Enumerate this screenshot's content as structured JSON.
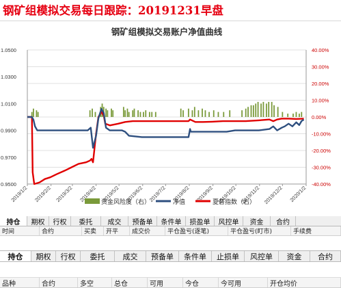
{
  "headline": "钢矿组模拟交易每日跟踪：20191231早盘",
  "chart_data": {
    "type": "bar+line",
    "title": "钢矿组模拟交易账户净值曲线",
    "left_ticks": [
      "1.0500",
      "1.0300",
      "1.0100",
      "0.9900",
      "0.9700",
      "0.9500"
    ],
    "left_ylim": [
      0.95,
      1.05
    ],
    "right_ticks": [
      "40.00%",
      "30.00%",
      "20.00%",
      "10.00%",
      "0.00%",
      "-10.00%",
      "-20.00%",
      "-30.00%",
      "-40.00%"
    ],
    "right_ylim": [
      -40,
      40
    ],
    "x_ticks": [
      "2019/1/2",
      "2019/2/2",
      "2019/3/2",
      "2019/4/2",
      "2019/5/2",
      "2019/6/2",
      "2019/7/2",
      "2019/8/2",
      "2019/9/2",
      "2019/10/2",
      "2019/11/2",
      "2019/12/2",
      "2020/1/2"
    ],
    "x_range": [
      "2019/1/2",
      "2020/1/2"
    ],
    "grid": true,
    "legend_position": "bottom",
    "series": [
      {
        "name": "资金风险度（右）",
        "kind": "bar",
        "axis": "right",
        "color": "#7a9a3a",
        "points": [
          [
            "2019/1/8",
            3
          ],
          [
            "2019/1/10",
            5
          ],
          [
            "2019/1/14",
            4
          ],
          [
            "2019/1/16",
            3
          ],
          [
            "2019/3/25",
            4
          ],
          [
            "2019/3/28",
            5
          ],
          [
            "2019/4/1",
            3
          ],
          [
            "2019/4/8",
            6
          ],
          [
            "2019/4/10",
            8
          ],
          [
            "2019/4/12",
            6
          ],
          [
            "2019/4/15",
            5
          ],
          [
            "2019/4/17",
            4
          ],
          [
            "2019/4/22",
            5
          ],
          [
            "2019/4/24",
            4
          ],
          [
            "2019/5/8",
            6
          ],
          [
            "2019/5/10",
            4
          ],
          [
            "2019/5/13",
            5
          ],
          [
            "2019/5/15",
            3
          ],
          [
            "2019/5/20",
            4
          ],
          [
            "2019/5/22",
            5
          ],
          [
            "2019/5/27",
            4
          ],
          [
            "2019/5/30",
            3
          ],
          [
            "2019/6/3",
            3
          ],
          [
            "2019/6/6",
            4
          ],
          [
            "2019/6/11",
            3
          ],
          [
            "2019/6/14",
            3
          ],
          [
            "2019/6/19",
            3
          ],
          [
            "2019/7/22",
            5
          ],
          [
            "2019/7/25",
            4
          ],
          [
            "2019/8/1",
            5
          ],
          [
            "2019/8/6",
            4
          ],
          [
            "2019/8/9",
            6
          ],
          [
            "2019/8/14",
            4
          ],
          [
            "2019/8/19",
            5
          ],
          [
            "2019/8/23",
            4
          ],
          [
            "2019/8/28",
            3
          ],
          [
            "2019/9/3",
            4
          ],
          [
            "2019/9/9",
            3
          ],
          [
            "2019/9/16",
            3
          ],
          [
            "2019/9/24",
            4
          ],
          [
            "2019/10/10",
            4
          ],
          [
            "2019/10/15",
            5
          ],
          [
            "2019/10/18",
            6
          ],
          [
            "2019/10/22",
            7
          ],
          [
            "2019/10/25",
            7
          ],
          [
            "2019/10/28",
            8
          ],
          [
            "2019/10/31",
            9
          ],
          [
            "2019/11/4",
            8
          ],
          [
            "2019/11/7",
            9
          ],
          [
            "2019/11/11",
            8
          ],
          [
            "2019/11/14",
            9
          ],
          [
            "2019/11/18",
            9
          ],
          [
            "2019/11/21",
            7
          ],
          [
            "2019/11/26",
            6
          ],
          [
            "2019/12/2",
            3
          ],
          [
            "2019/12/9",
            2
          ],
          [
            "2019/12/16",
            2
          ],
          [
            "2019/12/20",
            3
          ],
          [
            "2019/12/24",
            2
          ],
          [
            "2019/12/27",
            3
          ]
        ]
      },
      {
        "name": "净值",
        "kind": "line",
        "axis": "left",
        "color": "#2e4f7f",
        "points": [
          [
            "2019/1/2",
            1.0
          ],
          [
            "2019/1/8",
            1.0
          ],
          [
            "2019/1/10",
            0.998
          ],
          [
            "2019/1/12",
            0.993
          ],
          [
            "2019/1/15",
            0.99
          ],
          [
            "2019/1/20",
            0.99
          ],
          [
            "2019/2/1",
            0.99
          ],
          [
            "2019/2/15",
            0.99
          ],
          [
            "2019/3/1",
            0.99
          ],
          [
            "2019/3/15",
            0.99
          ],
          [
            "2019/3/22",
            0.99
          ],
          [
            "2019/3/26",
            0.992
          ],
          [
            "2019/3/28",
            0.982
          ],
          [
            "2019/3/29",
            0.977
          ],
          [
            "2019/4/2",
            0.986
          ],
          [
            "2019/4/5",
            0.999
          ],
          [
            "2019/4/9",
            1.006
          ],
          [
            "2019/4/12",
            1.003
          ],
          [
            "2019/4/15",
            0.992
          ],
          [
            "2019/4/20",
            0.99
          ],
          [
            "2019/5/1",
            0.99
          ],
          [
            "2019/5/6",
            0.99
          ],
          [
            "2019/5/10",
            0.989
          ],
          [
            "2019/5/15",
            0.986
          ],
          [
            "2019/6/1",
            0.985
          ],
          [
            "2019/6/15",
            0.985
          ],
          [
            "2019/7/1",
            0.985
          ],
          [
            "2019/7/15",
            0.985
          ],
          [
            "2019/7/25",
            0.985
          ],
          [
            "2019/8/1",
            0.985
          ],
          [
            "2019/8/3",
            0.991
          ],
          [
            "2019/8/4",
            0.989
          ],
          [
            "2019/8/20",
            0.989
          ],
          [
            "2019/9/1",
            0.989
          ],
          [
            "2019/9/20",
            0.989
          ],
          [
            "2019/10/1",
            0.99
          ],
          [
            "2019/10/15",
            0.99
          ],
          [
            "2019/11/1",
            0.99
          ],
          [
            "2019/11/15",
            0.991
          ],
          [
            "2019/11/20",
            0.993
          ],
          [
            "2019/11/25",
            0.99
          ],
          [
            "2019/12/1",
            0.992
          ],
          [
            "2019/12/5",
            0.993
          ],
          [
            "2019/12/10",
            0.995
          ],
          [
            "2019/12/15",
            0.993
          ],
          [
            "2019/12/20",
            0.996
          ],
          [
            "2019/12/24",
            0.994
          ],
          [
            "2019/12/27",
            0.997
          ],
          [
            "2019/12/30",
            0.998
          ]
        ]
      },
      {
        "name": "夏普指数（右）",
        "kind": "line",
        "axis": "right",
        "color": "#e00000",
        "points": [
          [
            "2019/1/2",
            0
          ],
          [
            "2019/1/6",
            0
          ],
          [
            "2019/1/8",
            0
          ],
          [
            "2019/1/9",
            -33
          ],
          [
            "2019/1/11",
            -40
          ],
          [
            "2019/1/18",
            -39
          ],
          [
            "2019/1/25",
            -37
          ],
          [
            "2019/2/1",
            -36
          ],
          [
            "2019/2/10",
            -34
          ],
          [
            "2019/2/20",
            -32
          ],
          [
            "2019/3/1",
            -30
          ],
          [
            "2019/3/10",
            -28
          ],
          [
            "2019/3/20",
            -27
          ],
          [
            "2019/3/25",
            -26
          ],
          [
            "2019/3/27",
            -25
          ],
          [
            "2019/3/29",
            -27
          ],
          [
            "2019/4/2",
            -10
          ],
          [
            "2019/4/5",
            0
          ],
          [
            "2019/4/9",
            3
          ],
          [
            "2019/4/12",
            1
          ],
          [
            "2019/4/14",
            -4
          ],
          [
            "2019/4/20",
            -5
          ],
          [
            "2019/5/1",
            -4
          ],
          [
            "2019/5/10",
            -3
          ],
          [
            "2019/5/20",
            -2.5
          ],
          [
            "2019/6/1",
            -2.5
          ],
          [
            "2019/6/15",
            -2.5
          ],
          [
            "2019/7/1",
            -2.5
          ],
          [
            "2019/7/15",
            -2.5
          ],
          [
            "2019/8/1",
            -2.5
          ],
          [
            "2019/8/3",
            -1.5
          ],
          [
            "2019/8/10",
            -3
          ],
          [
            "2019/8/20",
            -3
          ],
          [
            "2019/9/1",
            -2.8
          ],
          [
            "2019/9/15",
            -2.5
          ],
          [
            "2019/10/1",
            -2.5
          ],
          [
            "2019/10/15",
            -2.5
          ],
          [
            "2019/11/1",
            -2
          ],
          [
            "2019/11/15",
            -1.5
          ],
          [
            "2019/11/20",
            -2.5
          ],
          [
            "2019/11/25",
            -1.5
          ],
          [
            "2019/12/1",
            -1
          ],
          [
            "2019/12/10",
            -1
          ],
          [
            "2019/12/20",
            -1.2
          ],
          [
            "2019/12/30",
            -1
          ]
        ]
      }
    ]
  },
  "tabs_top": [
    {
      "label": "持仓",
      "active": true
    },
    {
      "label": "期权"
    },
    {
      "label": "行权"
    },
    {
      "label": "委托"
    },
    {
      "label": "成交"
    },
    {
      "label": "预备单"
    },
    {
      "label": "条件单"
    },
    {
      "label": "损盈单"
    },
    {
      "label": "风控单"
    },
    {
      "label": "资金"
    },
    {
      "label": "合约"
    }
  ],
  "headers_top": [
    "时间",
    "合约",
    "买卖",
    "开平",
    "成交价",
    "平仓盈亏(逐笔)",
    "平仓盈亏(盯市)",
    "手续费"
  ],
  "tabs_bottom": [
    {
      "label": "持仓",
      "active": true
    },
    {
      "label": "期权"
    },
    {
      "label": "行权"
    },
    {
      "label": "委托"
    },
    {
      "label": "成交"
    },
    {
      "label": "预备单"
    },
    {
      "label": "条件单"
    },
    {
      "label": "止损单"
    },
    {
      "label": "风控单"
    },
    {
      "label": "资金"
    },
    {
      "label": "合约"
    }
  ],
  "headers_bottom": [
    "品种",
    "合约",
    "多空",
    "总仓",
    "可用",
    "今仓",
    "今可用",
    "开仓均价"
  ]
}
